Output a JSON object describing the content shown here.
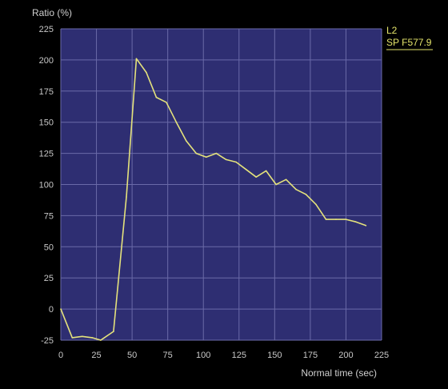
{
  "chart_data": {
    "type": "line",
    "ylabel": "Ratio (%)",
    "xlabel": "Normal time (sec)",
    "xlim": [
      0,
      225
    ],
    "ylim": [
      -25,
      225
    ],
    "xticks": [
      "0",
      "25",
      "50",
      "75",
      "100",
      "125",
      "150",
      "175",
      "200",
      "225"
    ],
    "yticks": [
      "-25",
      "0",
      "25",
      "50",
      "75",
      "100",
      "125",
      "150",
      "175",
      "200",
      "225"
    ],
    "grid": true,
    "legend_position": "top-right",
    "colors": {
      "background": "#000000",
      "plot_area": "#2e2e72",
      "grid": "#6a6aa8",
      "line": "#e4e27c",
      "legend": "#e4e46a"
    },
    "legend": {
      "line1": "L2",
      "line2": "SP F577.9"
    },
    "series": [
      {
        "name": "L2 SP F577.9",
        "x": [
          0,
          8,
          15,
          22,
          28,
          37,
          46,
          53,
          60,
          67,
          74,
          81,
          88,
          95,
          102,
          109,
          116,
          123,
          130,
          137,
          144,
          151,
          158,
          165,
          172,
          179,
          186,
          193,
          200,
          207,
          214
        ],
        "y": [
          0,
          -23,
          -22,
          -23,
          -25,
          -18,
          90,
          201,
          190,
          170,
          166,
          150,
          135,
          125,
          122,
          125,
          120,
          118,
          112,
          106,
          111,
          100,
          104,
          96,
          92,
          84,
          72,
          72,
          72,
          70,
          67
        ]
      }
    ]
  }
}
